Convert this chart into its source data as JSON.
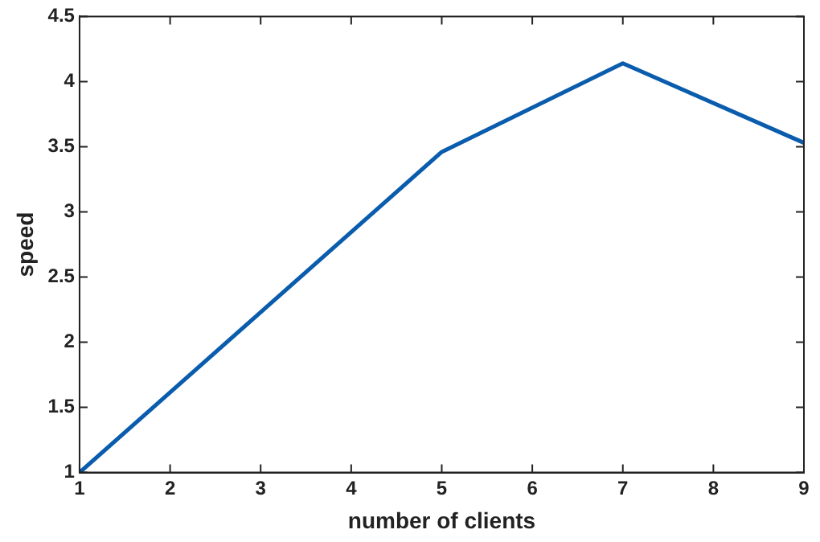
{
  "chart_data": {
    "type": "line",
    "xlabel": "number of clients",
    "ylabel": "speed",
    "x": [
      1,
      5,
      7,
      9
    ],
    "series": [
      {
        "color": "#0a5cad",
        "values": [
          1,
          3.46,
          4.14,
          3.53
        ]
      }
    ],
    "xlim": [
      1,
      9
    ],
    "xticks": [
      1,
      2,
      3,
      4,
      5,
      6,
      7,
      8,
      9
    ],
    "ylim": [
      1,
      4.5
    ],
    "yticks": [
      1,
      1.5,
      2,
      2.5,
      3,
      3.5,
      4,
      4.5
    ],
    "grid": false,
    "legend": false,
    "marker": "none",
    "line_style": "solid"
  }
}
